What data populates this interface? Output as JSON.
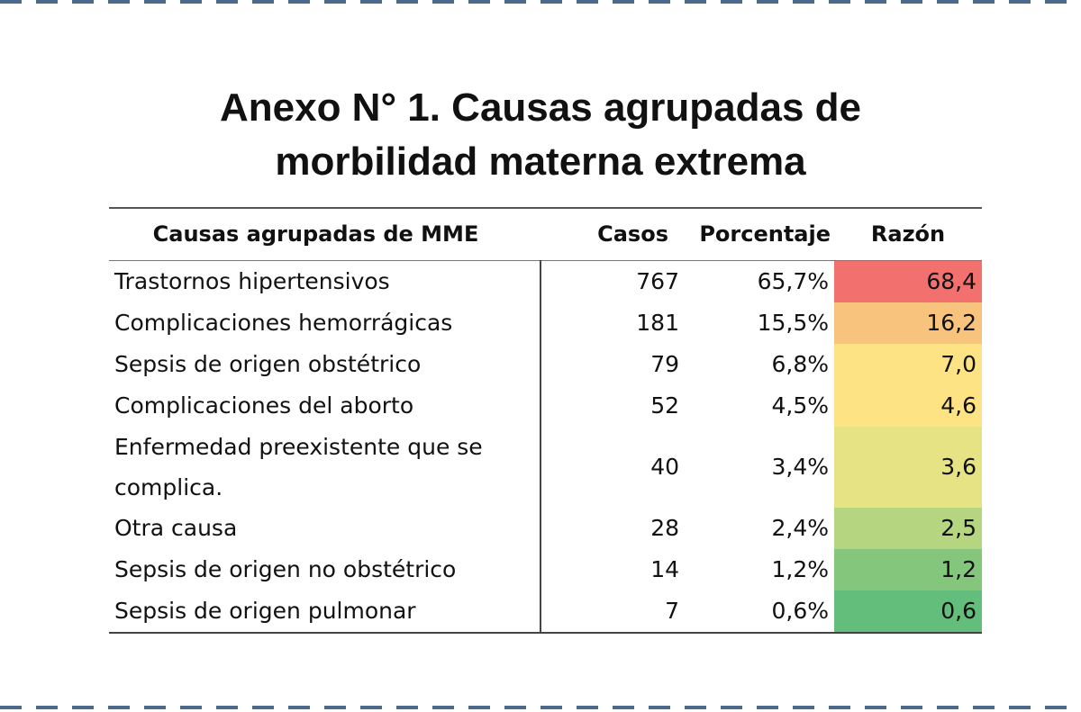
{
  "title": {
    "line1": "Anexo N° 1. Causas agrupadas de",
    "line2": "morbilidad materna extrema"
  },
  "chart_data": {
    "type": "table",
    "columns": [
      "Causas agrupadas de MME",
      "Casos",
      "Porcentaje",
      "Razón"
    ],
    "rows": [
      {
        "causa": "Trastornos hipertensivos",
        "casos": "767",
        "porcentaje": "65,7%",
        "razon": "68,4",
        "color": "#f2716f"
      },
      {
        "causa": "Complicaciones hemorrágicas",
        "casos": "181",
        "porcentaje": "15,5%",
        "razon": "16,2",
        "color": "#f8c37d"
      },
      {
        "causa": "Sepsis de origen obstétrico",
        "casos": "79",
        "porcentaje": "6,8%",
        "razon": "7,0",
        "color": "#fde383"
      },
      {
        "causa": "Complicaciones del aborto",
        "casos": "52",
        "porcentaje": "4,5%",
        "razon": "4,6",
        "color": "#fde383"
      },
      {
        "causa": "Enfermedad preexistente que se complica.",
        "casos": "40",
        "porcentaje": "3,4%",
        "razon": "3,6",
        "color": "#e5e384"
      },
      {
        "causa": "Otra causa",
        "casos": "28",
        "porcentaje": "2,4%",
        "razon": "2,5",
        "color": "#b5d581"
      },
      {
        "causa": "Sepsis de origen no obstétrico",
        "casos": "14",
        "porcentaje": "1,2%",
        "razon": "1,2",
        "color": "#84c77c"
      },
      {
        "causa": "Sepsis de origen pulmonar",
        "casos": "7",
        "porcentaje": "0,6%",
        "razon": "0,6",
        "color": "#63be7b"
      }
    ]
  }
}
